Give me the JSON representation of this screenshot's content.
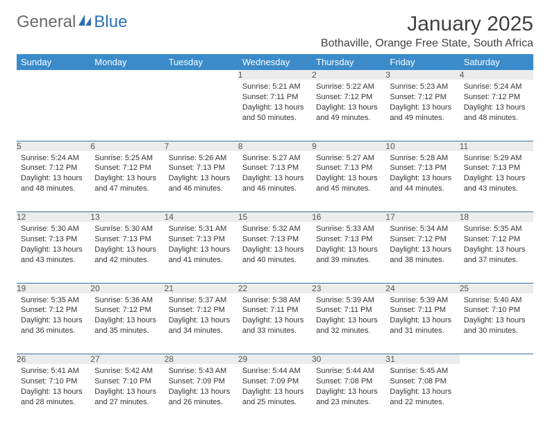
{
  "brand": {
    "part1": "General",
    "part2": "Blue"
  },
  "title": "January 2025",
  "location": "Bothaville, Orange Free State, South Africa",
  "colors": {
    "header_bg": "#3b8bca",
    "header_text": "#ffffff",
    "daynum_bg": "#ececec",
    "cell_border": "#3b6fa5",
    "body_text": "#333333",
    "brand_gray": "#6a6a6a",
    "brand_blue": "#2d6fb5"
  },
  "daysOfWeek": [
    "Sunday",
    "Monday",
    "Tuesday",
    "Wednesday",
    "Thursday",
    "Friday",
    "Saturday"
  ],
  "weeks": [
    [
      null,
      null,
      null,
      {
        "n": "1",
        "sr": "5:21 AM",
        "ss": "7:11 PM",
        "dl": "13 hours and 50 minutes."
      },
      {
        "n": "2",
        "sr": "5:22 AM",
        "ss": "7:12 PM",
        "dl": "13 hours and 49 minutes."
      },
      {
        "n": "3",
        "sr": "5:23 AM",
        "ss": "7:12 PM",
        "dl": "13 hours and 49 minutes."
      },
      {
        "n": "4",
        "sr": "5:24 AM",
        "ss": "7:12 PM",
        "dl": "13 hours and 48 minutes."
      }
    ],
    [
      {
        "n": "5",
        "sr": "5:24 AM",
        "ss": "7:12 PM",
        "dl": "13 hours and 48 minutes."
      },
      {
        "n": "6",
        "sr": "5:25 AM",
        "ss": "7:12 PM",
        "dl": "13 hours and 47 minutes."
      },
      {
        "n": "7",
        "sr": "5:26 AM",
        "ss": "7:13 PM",
        "dl": "13 hours and 46 minutes."
      },
      {
        "n": "8",
        "sr": "5:27 AM",
        "ss": "7:13 PM",
        "dl": "13 hours and 46 minutes."
      },
      {
        "n": "9",
        "sr": "5:27 AM",
        "ss": "7:13 PM",
        "dl": "13 hours and 45 minutes."
      },
      {
        "n": "10",
        "sr": "5:28 AM",
        "ss": "7:13 PM",
        "dl": "13 hours and 44 minutes."
      },
      {
        "n": "11",
        "sr": "5:29 AM",
        "ss": "7:13 PM",
        "dl": "13 hours and 43 minutes."
      }
    ],
    [
      {
        "n": "12",
        "sr": "5:30 AM",
        "ss": "7:13 PM",
        "dl": "13 hours and 43 minutes."
      },
      {
        "n": "13",
        "sr": "5:30 AM",
        "ss": "7:13 PM",
        "dl": "13 hours and 42 minutes."
      },
      {
        "n": "14",
        "sr": "5:31 AM",
        "ss": "7:13 PM",
        "dl": "13 hours and 41 minutes."
      },
      {
        "n": "15",
        "sr": "5:32 AM",
        "ss": "7:13 PM",
        "dl": "13 hours and 40 minutes."
      },
      {
        "n": "16",
        "sr": "5:33 AM",
        "ss": "7:13 PM",
        "dl": "13 hours and 39 minutes."
      },
      {
        "n": "17",
        "sr": "5:34 AM",
        "ss": "7:12 PM",
        "dl": "13 hours and 38 minutes."
      },
      {
        "n": "18",
        "sr": "5:35 AM",
        "ss": "7:12 PM",
        "dl": "13 hours and 37 minutes."
      }
    ],
    [
      {
        "n": "19",
        "sr": "5:35 AM",
        "ss": "7:12 PM",
        "dl": "13 hours and 36 minutes."
      },
      {
        "n": "20",
        "sr": "5:36 AM",
        "ss": "7:12 PM",
        "dl": "13 hours and 35 minutes."
      },
      {
        "n": "21",
        "sr": "5:37 AM",
        "ss": "7:12 PM",
        "dl": "13 hours and 34 minutes."
      },
      {
        "n": "22",
        "sr": "5:38 AM",
        "ss": "7:11 PM",
        "dl": "13 hours and 33 minutes."
      },
      {
        "n": "23",
        "sr": "5:39 AM",
        "ss": "7:11 PM",
        "dl": "13 hours and 32 minutes."
      },
      {
        "n": "24",
        "sr": "5:39 AM",
        "ss": "7:11 PM",
        "dl": "13 hours and 31 minutes."
      },
      {
        "n": "25",
        "sr": "5:40 AM",
        "ss": "7:10 PM",
        "dl": "13 hours and 30 minutes."
      }
    ],
    [
      {
        "n": "26",
        "sr": "5:41 AM",
        "ss": "7:10 PM",
        "dl": "13 hours and 28 minutes."
      },
      {
        "n": "27",
        "sr": "5:42 AM",
        "ss": "7:10 PM",
        "dl": "13 hours and 27 minutes."
      },
      {
        "n": "28",
        "sr": "5:43 AM",
        "ss": "7:09 PM",
        "dl": "13 hours and 26 minutes."
      },
      {
        "n": "29",
        "sr": "5:44 AM",
        "ss": "7:09 PM",
        "dl": "13 hours and 25 minutes."
      },
      {
        "n": "30",
        "sr": "5:44 AM",
        "ss": "7:08 PM",
        "dl": "13 hours and 23 minutes."
      },
      {
        "n": "31",
        "sr": "5:45 AM",
        "ss": "7:08 PM",
        "dl": "13 hours and 22 minutes."
      },
      null
    ]
  ],
  "labels": {
    "sunrise": "Sunrise:",
    "sunset": "Sunset:",
    "daylight": "Daylight:"
  }
}
